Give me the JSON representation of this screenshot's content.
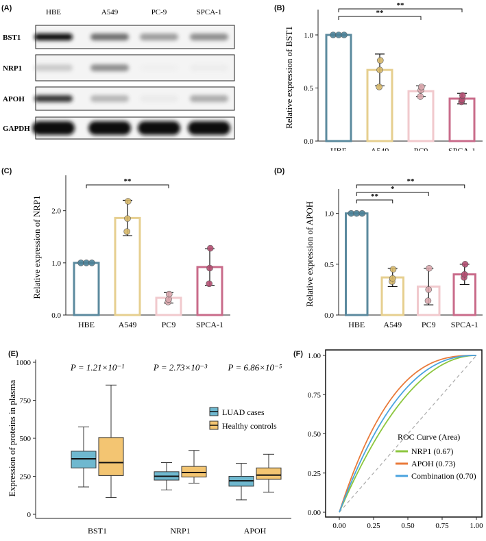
{
  "panels": {
    "A": {
      "label": "(A)"
    },
    "B": {
      "label": "(B)"
    },
    "C": {
      "label": "(C)"
    },
    "D": {
      "label": "(D)"
    },
    "E": {
      "label": "(E)"
    },
    "F": {
      "label": "(F)"
    }
  },
  "western_blot": {
    "lanes": [
      "HBE",
      "A549",
      "PC-9",
      "SPCA-1"
    ],
    "rows": [
      {
        "protein": "BST1",
        "intensities": [
          1.0,
          0.7,
          0.55,
          0.6
        ]
      },
      {
        "protein": "NRP1",
        "intensities": [
          0.35,
          0.6,
          0.05,
          0.1
        ]
      },
      {
        "protein": "APOH",
        "intensities": [
          0.85,
          0.45,
          0.12,
          0.5
        ]
      },
      {
        "protein": "GAPDH",
        "intensities": [
          1.0,
          1.0,
          1.0,
          1.0
        ]
      }
    ]
  },
  "chart_data": [
    {
      "panel": "B",
      "type": "bar",
      "ylabel": "Relative expression  of  BST1",
      "categories": [
        "HBE",
        "A549",
        "PC9",
        "SPCA-1"
      ],
      "values": [
        1.0,
        0.67,
        0.47,
        0.4
      ],
      "errors": [
        0.0,
        0.15,
        0.05,
        0.05
      ],
      "points": [
        [
          1.0,
          1.0,
          1.0
        ],
        [
          0.51,
          0.67,
          0.76
        ],
        [
          0.42,
          0.48,
          0.51
        ],
        [
          0.37,
          0.39,
          0.43
        ]
      ],
      "ylim": [
        0,
        1.2
      ],
      "yticks": [
        0.0,
        0.5,
        1.0
      ],
      "significance": [
        {
          "from": 0,
          "to": 2,
          "text": "**"
        },
        {
          "from": 0,
          "to": 3,
          "text": "**"
        }
      ]
    },
    {
      "panel": "C",
      "type": "bar",
      "ylabel": "Relative expression  of  NRP1",
      "categories": [
        "HBE",
        "A549",
        "PC9",
        "SPCA-1"
      ],
      "values": [
        1.0,
        1.86,
        0.33,
        0.92
      ],
      "errors": [
        0.0,
        0.34,
        0.1,
        0.35
      ],
      "points": [
        [
          1.0,
          1.0,
          1.0
        ],
        [
          1.6,
          1.85,
          2.18
        ],
        [
          0.25,
          0.3,
          0.4
        ],
        [
          0.6,
          0.9,
          1.28
        ]
      ],
      "ylim": [
        0,
        2.6
      ],
      "yticks": [
        0.0,
        1.0,
        2.0
      ],
      "significance": [
        {
          "from": 0,
          "to": 2,
          "text": "**"
        }
      ]
    },
    {
      "panel": "D",
      "type": "bar",
      "ylabel": "Relative expression  of  APOH",
      "categories": [
        "HBE",
        "A549",
        "PC9",
        "SPCA-1"
      ],
      "values": [
        1.0,
        0.37,
        0.28,
        0.4
      ],
      "errors": [
        0.0,
        0.09,
        0.18,
        0.1
      ],
      "points": [
        [
          1.0,
          1.0,
          1.0
        ],
        [
          0.33,
          0.36,
          0.45
        ],
        [
          0.14,
          0.25,
          0.46
        ],
        [
          0.37,
          0.4,
          0.5
        ]
      ],
      "ylim": [
        0,
        1.2
      ],
      "yticks": [
        0.0,
        0.5,
        1.0
      ],
      "significance": [
        {
          "from": 0,
          "to": 1,
          "text": "**"
        },
        {
          "from": 0,
          "to": 2,
          "text": "*"
        },
        {
          "from": 0,
          "to": 3,
          "text": "**"
        }
      ]
    },
    {
      "panel": "E",
      "type": "box",
      "ylabel": "Expression  of  proteins in plasma",
      "categories": [
        "BST1",
        "NRP1",
        "APOH"
      ],
      "ylim": [
        0,
        1000
      ],
      "yticks": [
        0,
        250,
        500,
        750,
        1000
      ],
      "pvalues": [
        "P = 1.21×10⁻¹",
        "P = 2.73×10⁻³",
        "P = 6.86×10⁻⁵"
      ],
      "legend": {
        "position": "right",
        "entries": [
          "LUAD cases",
          "Healthy controls"
        ]
      },
      "series": [
        {
          "name": "LUAD cases",
          "color": "#6fb8cf",
          "boxes": [
            {
              "min": 180,
              "q1": 305,
              "median": 365,
              "q3": 415,
              "max": 575
            },
            {
              "min": 160,
              "q1": 225,
              "median": 250,
              "q3": 280,
              "max": 340
            },
            {
              "min": 95,
              "q1": 185,
              "median": 220,
              "q3": 250,
              "max": 335
            }
          ]
        },
        {
          "name": "Healthy controls",
          "color": "#f3c572",
          "boxes": [
            {
              "min": 110,
              "q1": 255,
              "median": 340,
              "q3": 505,
              "max": 850
            },
            {
              "min": 205,
              "q1": 245,
              "median": 275,
              "q3": 315,
              "max": 420
            },
            {
              "min": 145,
              "q1": 230,
              "median": 258,
              "q3": 305,
              "max": 395
            }
          ]
        }
      ]
    },
    {
      "panel": "F",
      "type": "line",
      "title": "ROC Curve (Area)",
      "xlim": [
        0,
        1
      ],
      "ylim": [
        0,
        1
      ],
      "xticks": [
        "0.00",
        "0.25",
        "0.50",
        "0.75",
        "1.00"
      ],
      "yticks": [
        "0.00",
        "0.25",
        "0.50",
        "0.75",
        "1.00"
      ],
      "series": [
        {
          "name": "NRP1 (0.67)",
          "color": "#8cc63e",
          "auc": 0.67
        },
        {
          "name": "APOH (0.73)",
          "color": "#e97a3a",
          "auc": 0.73
        },
        {
          "name": "Combination (0.70)",
          "color": "#4aa3df",
          "auc": 0.7
        }
      ],
      "diagonal_color": "#aaaaaa"
    }
  ],
  "colors": {
    "bars": [
      "#5b8a9e",
      "#e6cf8f",
      "#f1c9cd",
      "#c96b8a"
    ],
    "points": [
      "#4c8197",
      "#d6b86a",
      "#dba8ae",
      "#b34f72"
    ]
  }
}
